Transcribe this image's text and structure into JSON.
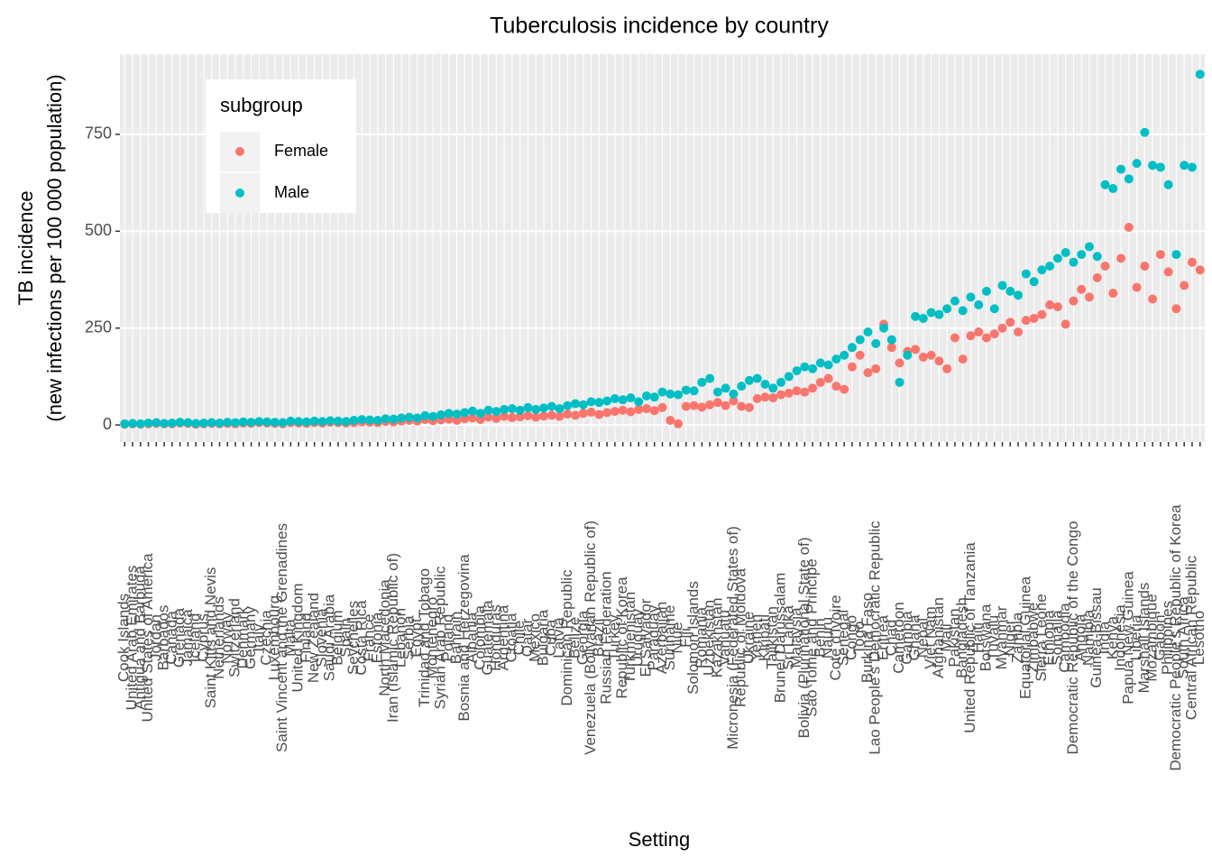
{
  "chart_data": {
    "type": "scatter",
    "title": "Tuberculosis incidence by country",
    "xlabel": "Setting",
    "ylabel": [
      "TB incidence",
      "(new infections per 100 000 population)"
    ],
    "legend_title": "subgroup",
    "legend_position": "top-left",
    "grid": true,
    "ylim": [
      -44,
      957
    ],
    "yticks": [
      0,
      250,
      500,
      750
    ],
    "categories": [
      "Cook Islands",
      "United Arab Emirates",
      "Antigua and Barbuda",
      "United States of America",
      "Jordan",
      "Barbados",
      "Canada",
      "Grenada",
      "Jamaica",
      "Iceland",
      "Cyprus",
      "Saint Kitts and Nevis",
      "Netherlands",
      "Norway",
      "Switzerland",
      "Denmark",
      "Germany",
      "Italy",
      "Czechia",
      "Luxembourg",
      "Saint Vincent and the Grenadines",
      "Malta",
      "United Kingdom",
      "Finland",
      "New Zealand",
      "Slovenia",
      "Saudi Arabia",
      "Belgium",
      "Spain",
      "Seychelles",
      "Costa Rica",
      "France",
      "Estonia",
      "North Macedonia",
      "Iran (Islamic Republic of)",
      "Lebanon",
      "Serbia",
      "Egypt",
      "Trinidad and Tobago",
      "Montenegro",
      "Syrian Arab Republic",
      "Poland",
      "Bahrain",
      "Bosnia and Herzegovina",
      "Albania",
      "Colombia",
      "Guatemala",
      "Honduras",
      "Argentina",
      "Croatia",
      "Chile",
      "Qatar",
      "Mexico",
      "Bulgaria",
      "Cuba",
      "Latvia",
      "Dominican Republic",
      "Belize",
      "Georgia",
      "Venezuela (Bolivarian Republic of)",
      "Brazil",
      "Russian Federation",
      "Turkey",
      "Republic of Korea",
      "Turkmenistan",
      "Uruguay",
      "El Salvador",
      "Paraguay",
      "Azerbaijan",
      "Suriname",
      "Niue",
      "Fiji",
      "Solomon Islands",
      "Romania",
      "Uzbekistan",
      "Kazakhstan",
      "Vanuatu",
      "Micronesia (Federated States of)",
      "Republic of Moldova",
      "Ukraine",
      "Yemen",
      "Kiribati",
      "Tajikistan",
      "Brunei Darussalam",
      "Sri Lanka",
      "Malaysia",
      "Bolivia (Plurinational State of)",
      "Sao Tome and Principe",
      "Benin",
      "Nauru",
      "Cote d'Ivoire",
      "Senegal",
      "Congo",
      "Togo",
      "Burkina Faso",
      "Lao People's Democratic Republic",
      "Eritrea",
      "Chad",
      "Cameroon",
      "Gambia",
      "Ghana",
      "Nepal",
      "Viet Nam",
      "Afghanistan",
      "Mali",
      "Pakistan",
      "Bangladesh",
      "United Republic of Tanzania",
      "Haiti",
      "Botswana",
      "Tuvalu",
      "Myanmar",
      "Niger",
      "Zambia",
      "Equatorial Guinea",
      "Zimbabwe",
      "Sierra Leone",
      "Ethiopia",
      "Somalia",
      "Cambodia",
      "Democratic Republic of the Congo",
      "Angola",
      "Namibia",
      "Guinea-Bissau",
      "India",
      "Kenya",
      "Indonesia",
      "Papua New Guinea",
      "Liberia",
      "Marshall Islands",
      "Mozambique",
      "Gabon",
      "Philippines",
      "Democratic People's Republic of Korea",
      "South Africa",
      "Central African Republic",
      "Lesotho"
    ],
    "series": [
      {
        "name": "Female",
        "color": "#F8766D",
        "values": [
          2,
          3,
          2,
          3,
          4,
          3,
          3,
          5,
          4,
          2,
          3,
          4,
          3,
          4,
          3,
          5,
          4,
          6,
          5,
          4,
          3,
          6,
          5,
          4,
          6,
          5,
          7,
          6,
          5,
          6,
          8,
          7,
          6,
          9,
          8,
          10,
          12,
          10,
          14,
          11,
          13,
          15,
          12,
          16,
          18,
          14,
          20,
          17,
          22,
          19,
          21,
          24,
          20,
          23,
          25,
          22,
          28,
          25,
          30,
          33,
          27,
          32,
          35,
          38,
          34,
          40,
          42,
          37,
          45,
          12,
          3,
          48,
          50,
          46,
          52,
          58,
          50,
          62,
          48,
          45,
          68,
          72,
          70,
          78,
          82,
          88,
          85,
          95,
          110,
          120,
          100,
          92,
          150,
          180,
          135,
          145,
          260,
          200,
          160,
          190,
          195,
          175,
          180,
          165,
          145,
          225,
          170,
          230,
          240,
          225,
          235,
          250,
          265,
          240,
          270,
          275,
          285,
          310,
          305,
          260,
          320,
          350,
          330,
          380,
          410,
          340,
          430,
          510,
          355,
          410,
          325,
          440,
          395,
          300,
          360,
          420,
          400
        ]
      },
      {
        "name": "Male",
        "color": "#00BFC4",
        "values": [
          3,
          4,
          3,
          5,
          6,
          4,
          5,
          7,
          6,
          4,
          5,
          6,
          5,
          7,
          6,
          8,
          7,
          9,
          8,
          7,
          6,
          10,
          9,
          8,
          10,
          9,
          11,
          10,
          9,
          12,
          14,
          13,
          12,
          16,
          15,
          18,
          20,
          18,
          24,
          22,
          26,
          30,
          28,
          32,
          36,
          30,
          38,
          35,
          40,
          42,
          38,
          45,
          40,
          44,
          48,
          42,
          50,
          55,
          52,
          60,
          58,
          62,
          68,
          65,
          70,
          60,
          75,
          72,
          85,
          80,
          78,
          90,
          88,
          110,
          120,
          85,
          95,
          80,
          100,
          115,
          120,
          105,
          95,
          110,
          125,
          140,
          150,
          145,
          160,
          155,
          170,
          180,
          200,
          220,
          240,
          210,
          250,
          220,
          110,
          180,
          280,
          275,
          290,
          285,
          300,
          320,
          295,
          330,
          310,
          345,
          300,
          360,
          345,
          335,
          390,
          370,
          400,
          410,
          430,
          445,
          420,
          440,
          460,
          435,
          620,
          610,
          660,
          635,
          675,
          755,
          670,
          665,
          620,
          440,
          670,
          665,
          905
        ]
      }
    ]
  }
}
